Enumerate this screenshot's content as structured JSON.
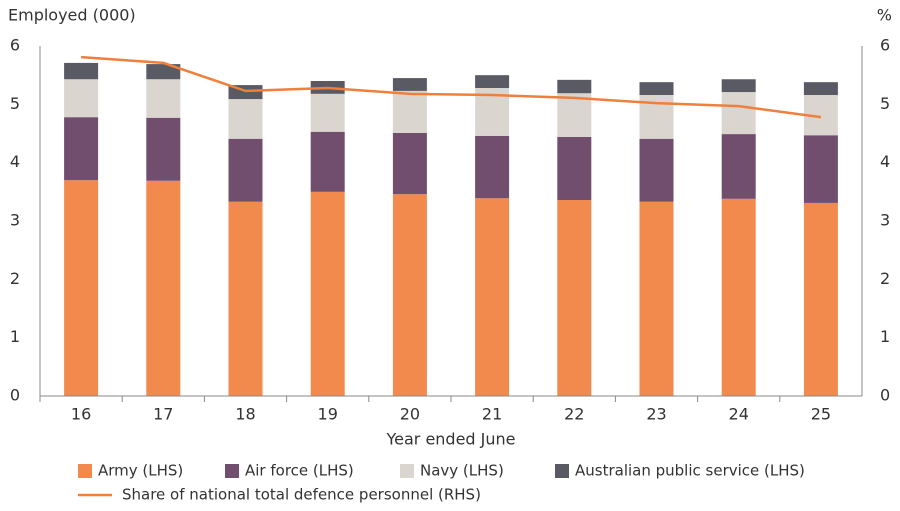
{
  "chart_data": {
    "type": "stacked_bar_line",
    "y_axis_label": "Employed (000)",
    "y2_axis_label": "%",
    "x_axis_label": "Year ended June",
    "categories": [
      "16",
      "17",
      "18",
      "19",
      "20",
      "21",
      "22",
      "23",
      "24",
      "25"
    ],
    "series": [
      {
        "name": "Army (LHS)",
        "color": "#f28a4e",
        "values": [
          3.7,
          3.69,
          3.33,
          3.5,
          3.46,
          3.39,
          3.36,
          3.33,
          3.38,
          3.31
        ]
      },
      {
        "name": "Air force (LHS)",
        "color": "#714d6e",
        "values": [
          1.08,
          1.08,
          1.08,
          1.03,
          1.05,
          1.07,
          1.08,
          1.08,
          1.11,
          1.16
        ]
      },
      {
        "name": "Navy (LHS)",
        "color": "#dbd5cf",
        "values": [
          0.65,
          0.66,
          0.68,
          0.65,
          0.72,
          0.82,
          0.75,
          0.75,
          0.72,
          0.69
        ]
      },
      {
        "name": "Australian public service (LHS)",
        "color": "#5a5a64",
        "values": [
          0.28,
          0.26,
          0.24,
          0.22,
          0.22,
          0.22,
          0.23,
          0.22,
          0.22,
          0.22
        ]
      },
      {
        "name": "Share of national total defence personnel (RHS)",
        "color": "#f07f3c",
        "axis": "y2",
        "values": [
          5.81,
          5.71,
          5.23,
          5.28,
          5.18,
          5.16,
          5.11,
          5.02,
          4.97,
          4.78
        ]
      }
    ],
    "ylim": [
      0,
      6
    ],
    "yticks": [
      0,
      1,
      2,
      3,
      4,
      5,
      6
    ],
    "y2lim": [
      0,
      6
    ],
    "y2ticks": [
      0,
      1,
      2,
      3,
      4,
      5,
      6
    ]
  }
}
